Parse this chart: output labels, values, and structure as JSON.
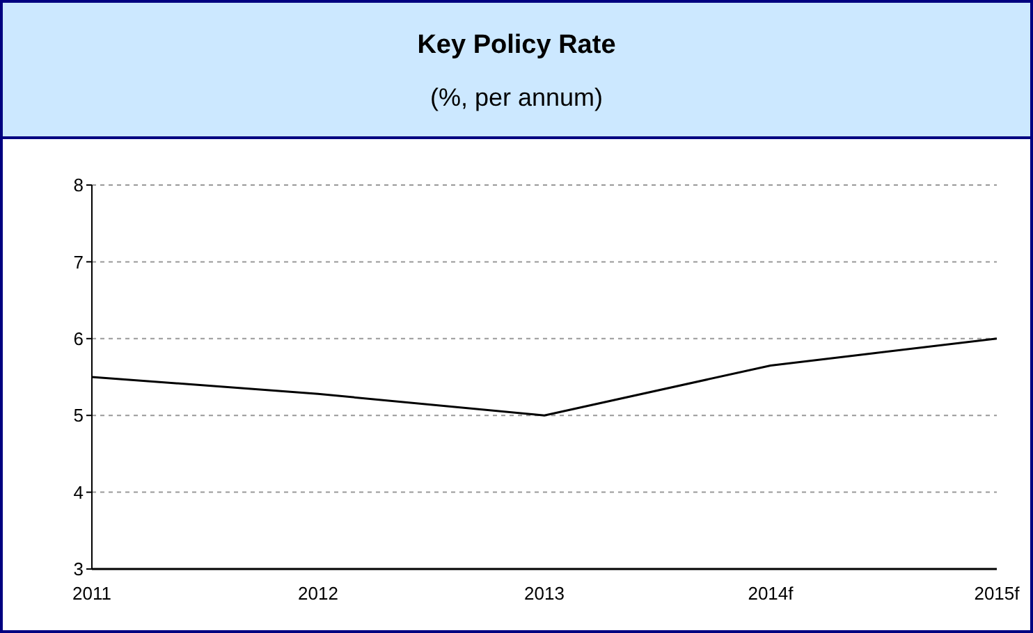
{
  "chart_data": {
    "type": "line",
    "title": "Key Policy Rate",
    "subtitle": "(%, per annum)",
    "categories": [
      "2011",
      "2012",
      "2013",
      "2014f",
      "2015f"
    ],
    "series": [
      {
        "color": "#000000",
        "values": [
          5.5,
          5.28,
          5.0,
          5.65,
          6.0
        ]
      }
    ],
    "ylim": [
      3,
      8
    ],
    "yticks": [
      3,
      4,
      5,
      6,
      7,
      8
    ],
    "grid": "y",
    "marker": "none",
    "line_style": "solid"
  }
}
